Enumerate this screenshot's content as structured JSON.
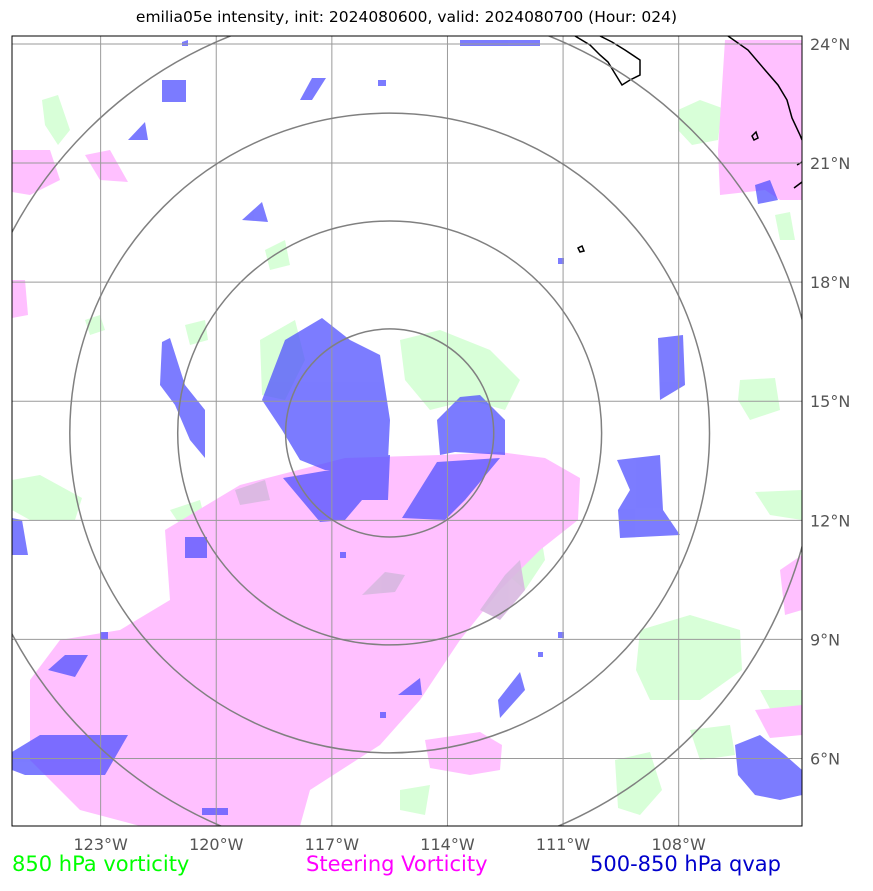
{
  "title": "emilia05e intensity, init: 2024080600, valid: 2024080700 (Hour: 024)",
  "map": {
    "lon_range": [
      -125.3,
      -104.8
    ],
    "lat_range": [
      4.3,
      24.2
    ],
    "lon_ticks": [
      {
        "value": -123,
        "label": "123°W"
      },
      {
        "value": -120,
        "label": "120°W"
      },
      {
        "value": -117,
        "label": "117°W"
      },
      {
        "value": -114,
        "label": "114°W"
      },
      {
        "value": -111,
        "label": "111°W"
      },
      {
        "value": -108,
        "label": "108°W"
      }
    ],
    "lat_ticks": [
      {
        "value": 6,
        "label": "6°N"
      },
      {
        "value": 9,
        "label": "9°N"
      },
      {
        "value": 12,
        "label": "12°N"
      },
      {
        "value": 15,
        "label": "15°N"
      },
      {
        "value": 18,
        "label": "18°N"
      },
      {
        "value": 21,
        "label": "21°N"
      },
      {
        "value": 24,
        "label": "24°N"
      }
    ],
    "gridlines": true,
    "storm_center": {
      "lon": -115.5,
      "lat": 14.2
    },
    "range_rings_deg": [
      2.7,
      5.5,
      8.3,
      11.1
    ]
  },
  "legend": [
    {
      "label": "850 hPa vorticity",
      "color": "#00ff00"
    },
    {
      "label": "Steering Vorticity",
      "color": "#ff00ff"
    },
    {
      "label": "500-850 hPa qvap",
      "color": "#0000cc"
    }
  ],
  "colors": {
    "vorticity_850": "#d8ffd8",
    "steering": "#ffc0ff",
    "qvap": "#5050ff"
  }
}
